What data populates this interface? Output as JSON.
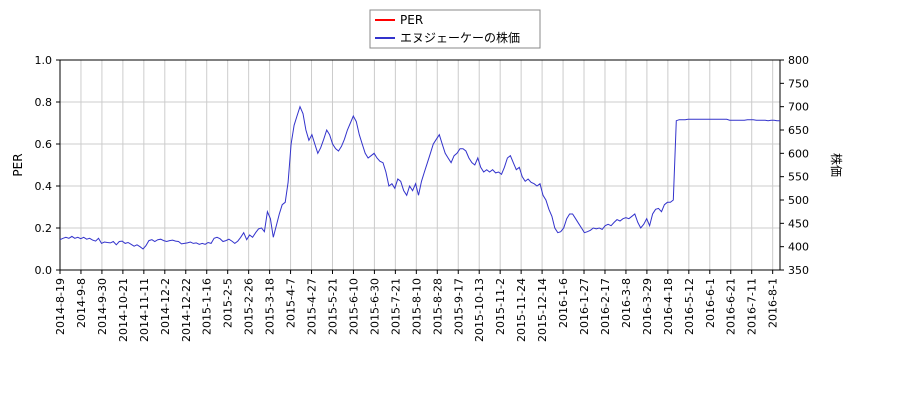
{
  "chart_data": {
    "type": "line",
    "legend": {
      "placement": "top-center",
      "entries": [
        {
          "label": "PER",
          "color": "#ff0000"
        },
        {
          "label": "エヌジェーケーの株価",
          "color": "#3333cc"
        }
      ]
    },
    "y_left": {
      "label": "PER",
      "range": [
        0.0,
        1.0
      ],
      "ticks": [
        "0.0",
        "0.2",
        "0.4",
        "0.6",
        "0.8",
        "1.0"
      ]
    },
    "y_right": {
      "label": "株価",
      "range": [
        350,
        800
      ],
      "ticks": [
        "350",
        "400",
        "450",
        "500",
        "550",
        "600",
        "650",
        "700",
        "750",
        "800"
      ]
    },
    "x_ticks": [
      "2014-8-19",
      "2014-9-8",
      "2014-9-30",
      "2014-10-21",
      "2014-11-11",
      "2014-12-2",
      "2014-12-22",
      "2015-1-16",
      "2015-2-5",
      "2015-2-26",
      "2015-3-18",
      "2015-4-7",
      "2015-4-27",
      "2015-5-21",
      "2015-6-10",
      "2015-6-30",
      "2015-7-21",
      "2015-8-10",
      "2015-8-28",
      "2015-9-17",
      "2015-10-13",
      "2015-11-2",
      "2015-11-24",
      "2015-12-14",
      "2016-1-6",
      "2016-1-27",
      "2016-2-17",
      "2016-3-8",
      "2016-3-29",
      "2016-4-18",
      "2016-5-12",
      "2016-6-1",
      "2016-6-21",
      "2016-7-11",
      "2016-8-1"
    ],
    "grid": true,
    "series": [
      {
        "name": "PER",
        "axis": "left",
        "color": "#ff0000",
        "values": []
      },
      {
        "name": "エヌジェーケーの株価",
        "axis": "right",
        "color": "#3333cc",
        "values": [
          [
            0,
            415
          ],
          [
            1,
            418
          ],
          [
            2,
            420
          ],
          [
            3,
            418
          ],
          [
            4,
            422
          ],
          [
            5,
            418
          ],
          [
            6,
            420
          ],
          [
            7,
            417
          ],
          [
            8,
            420
          ],
          [
            9,
            416
          ],
          [
            10,
            418
          ],
          [
            11,
            414
          ],
          [
            12,
            412
          ],
          [
            13,
            418
          ],
          [
            14,
            407
          ],
          [
            15,
            410
          ],
          [
            16,
            409
          ],
          [
            17,
            408
          ],
          [
            18,
            411
          ],
          [
            19,
            404
          ],
          [
            20,
            411
          ],
          [
            21,
            412
          ],
          [
            22,
            407
          ],
          [
            23,
            409
          ],
          [
            24,
            405
          ],
          [
            25,
            401
          ],
          [
            26,
            404
          ],
          [
            27,
            400
          ],
          [
            28,
            395
          ],
          [
            29,
            402
          ],
          [
            30,
            413
          ],
          [
            31,
            415
          ],
          [
            32,
            411
          ],
          [
            33,
            415
          ],
          [
            34,
            416
          ],
          [
            35,
            413
          ],
          [
            36,
            411
          ],
          [
            37,
            413
          ],
          [
            38,
            414
          ],
          [
            39,
            412
          ],
          [
            40,
            411
          ],
          [
            41,
            406
          ],
          [
            42,
            407
          ],
          [
            43,
            408
          ],
          [
            44,
            410
          ],
          [
            45,
            407
          ],
          [
            46,
            408
          ],
          [
            47,
            405
          ],
          [
            48,
            407
          ],
          [
            49,
            405
          ],
          [
            50,
            409
          ],
          [
            51,
            407
          ],
          [
            52,
            418
          ],
          [
            53,
            420
          ],
          [
            54,
            417
          ],
          [
            55,
            411
          ],
          [
            56,
            413
          ],
          [
            57,
            416
          ],
          [
            58,
            412
          ],
          [
            59,
            407
          ],
          [
            60,
            412
          ],
          [
            61,
            420
          ],
          [
            62,
            430
          ],
          [
            63,
            415
          ],
          [
            64,
            425
          ],
          [
            65,
            420
          ],
          [
            66,
            430
          ],
          [
            67,
            438
          ],
          [
            68,
            440
          ],
          [
            69,
            432
          ],
          [
            70,
            475
          ],
          [
            71,
            460
          ],
          [
            72,
            420
          ],
          [
            73,
            445
          ],
          [
            74,
            470
          ],
          [
            75,
            490
          ],
          [
            76,
            495
          ],
          [
            77,
            538
          ],
          [
            78,
            620
          ],
          [
            79,
            660
          ],
          [
            80,
            680
          ],
          [
            81,
            700
          ],
          [
            82,
            685
          ],
          [
            83,
            650
          ],
          [
            84,
            628
          ],
          [
            85,
            640
          ],
          [
            86,
            620
          ],
          [
            87,
            600
          ],
          [
            88,
            612
          ],
          [
            89,
            630
          ],
          [
            90,
            650
          ],
          [
            91,
            640
          ],
          [
            92,
            620
          ],
          [
            93,
            610
          ],
          [
            94,
            605
          ],
          [
            95,
            615
          ],
          [
            96,
            630
          ],
          [
            97,
            650
          ],
          [
            98,
            665
          ],
          [
            99,
            680
          ],
          [
            100,
            668
          ],
          [
            101,
            640
          ],
          [
            102,
            620
          ],
          [
            103,
            600
          ],
          [
            104,
            590
          ],
          [
            105,
            595
          ],
          [
            106,
            600
          ],
          [
            107,
            590
          ],
          [
            108,
            583
          ],
          [
            109,
            580
          ],
          [
            110,
            560
          ],
          [
            111,
            530
          ],
          [
            112,
            535
          ],
          [
            113,
            525
          ],
          [
            114,
            545
          ],
          [
            115,
            540
          ],
          [
            116,
            520
          ],
          [
            117,
            510
          ],
          [
            118,
            530
          ],
          [
            119,
            520
          ],
          [
            120,
            535
          ],
          [
            121,
            510
          ],
          [
            122,
            540
          ],
          [
            123,
            560
          ],
          [
            124,
            580
          ],
          [
            125,
            600
          ],
          [
            126,
            620
          ],
          [
            127,
            630
          ],
          [
            128,
            640
          ],
          [
            129,
            620
          ],
          [
            130,
            600
          ],
          [
            131,
            590
          ],
          [
            132,
            580
          ],
          [
            133,
            595
          ],
          [
            134,
            600
          ],
          [
            135,
            610
          ],
          [
            136,
            610
          ],
          [
            137,
            605
          ],
          [
            138,
            590
          ],
          [
            139,
            580
          ],
          [
            140,
            575
          ],
          [
            141,
            590
          ],
          [
            142,
            570
          ],
          [
            143,
            560
          ],
          [
            144,
            565
          ],
          [
            145,
            560
          ],
          [
            146,
            565
          ],
          [
            147,
            558
          ],
          [
            148,
            560
          ],
          [
            149,
            555
          ],
          [
            150,
            570
          ],
          [
            151,
            590
          ],
          [
            152,
            595
          ],
          [
            153,
            580
          ],
          [
            154,
            565
          ],
          [
            155,
            570
          ],
          [
            156,
            550
          ],
          [
            157,
            540
          ],
          [
            158,
            545
          ],
          [
            159,
            538
          ],
          [
            160,
            535
          ],
          [
            161,
            530
          ],
          [
            162,
            535
          ],
          [
            163,
            510
          ],
          [
            164,
            500
          ],
          [
            165,
            480
          ],
          [
            166,
            465
          ],
          [
            167,
            440
          ],
          [
            168,
            430
          ],
          [
            169,
            432
          ],
          [
            170,
            440
          ],
          [
            171,
            460
          ],
          [
            172,
            470
          ],
          [
            173,
            470
          ],
          [
            174,
            460
          ],
          [
            175,
            450
          ],
          [
            176,
            440
          ],
          [
            177,
            430
          ],
          [
            178,
            432
          ],
          [
            179,
            435
          ],
          [
            180,
            440
          ],
          [
            181,
            438
          ],
          [
            182,
            440
          ],
          [
            183,
            437
          ],
          [
            184,
            445
          ],
          [
            185,
            448
          ],
          [
            186,
            445
          ],
          [
            187,
            452
          ],
          [
            188,
            458
          ],
          [
            189,
            455
          ],
          [
            190,
            460
          ],
          [
            191,
            462
          ],
          [
            192,
            460
          ],
          [
            193,
            465
          ],
          [
            194,
            470
          ],
          [
            195,
            452
          ],
          [
            196,
            440
          ],
          [
            197,
            448
          ],
          [
            198,
            460
          ],
          [
            199,
            445
          ],
          [
            200,
            470
          ],
          [
            201,
            480
          ],
          [
            202,
            482
          ],
          [
            203,
            475
          ],
          [
            204,
            490
          ],
          [
            205,
            495
          ],
          [
            206,
            495
          ],
          [
            207,
            500
          ],
          [
            208,
            670
          ],
          [
            209,
            672
          ],
          [
            210,
            672
          ],
          [
            211,
            672
          ],
          [
            212,
            673
          ],
          [
            213,
            673
          ],
          [
            214,
            673
          ],
          [
            215,
            673
          ],
          [
            216,
            673
          ],
          [
            217,
            673
          ],
          [
            218,
            673
          ],
          [
            219,
            673
          ],
          [
            220,
            673
          ],
          [
            221,
            673
          ],
          [
            222,
            673
          ],
          [
            223,
            673
          ],
          [
            224,
            673
          ],
          [
            225,
            673
          ],
          [
            226,
            671
          ],
          [
            227,
            671
          ],
          [
            228,
            671
          ],
          [
            229,
            671
          ],
          [
            230,
            671
          ],
          [
            231,
            671
          ],
          [
            232,
            672
          ],
          [
            233,
            672
          ],
          [
            234,
            672
          ],
          [
            235,
            671
          ],
          [
            236,
            671
          ],
          [
            237,
            671
          ],
          [
            238,
            671
          ],
          [
            239,
            670
          ],
          [
            240,
            671
          ],
          [
            241,
            671
          ],
          [
            242,
            670
          ],
          [
            243,
            670
          ]
        ]
      }
    ]
  }
}
